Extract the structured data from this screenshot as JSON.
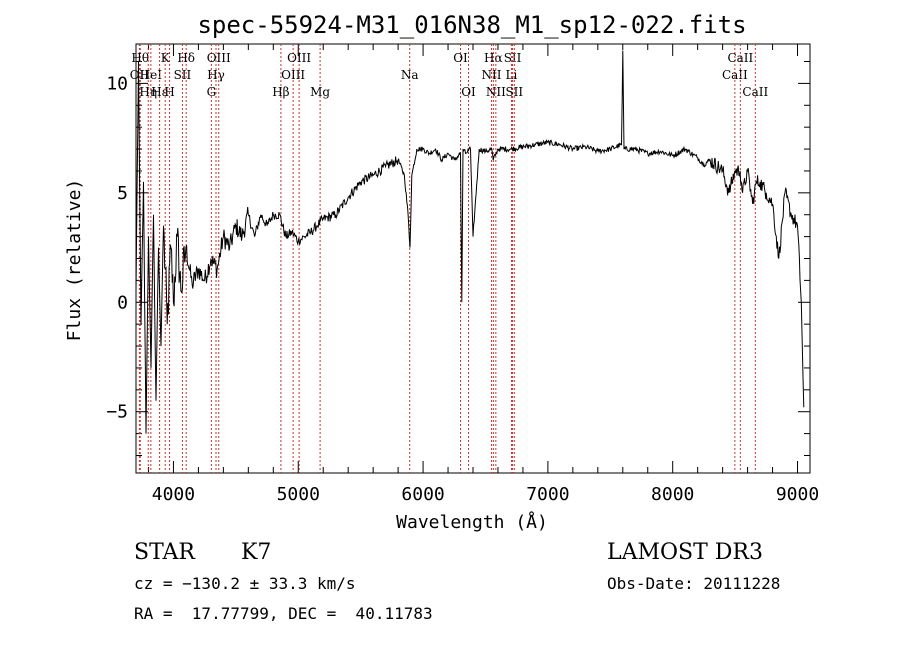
{
  "chart_data": {
    "type": "line",
    "title": "spec-55924-M31_016N38_M1_sp12-022.fits",
    "xlabel": "Wavelength (Å)",
    "ylabel": "Flux (relative)",
    "xlim": [
      3700,
      9100
    ],
    "ylim": [
      -7.8,
      11.8
    ],
    "xticks": [
      4000,
      5000,
      6000,
      7000,
      8000,
      9000
    ],
    "xtick_labels": [
      "4000",
      "5000",
      "6000",
      "7000",
      "8000",
      "9000"
    ],
    "yticks": [
      -5,
      0,
      5,
      10
    ],
    "ytick_labels": [
      "−5",
      "0",
      "5",
      "10"
    ],
    "grid": false,
    "series": [
      {
        "name": "flux",
        "x": [
          3700,
          3720,
          3740,
          3760,
          3780,
          3800,
          3820,
          3840,
          3860,
          3880,
          3900,
          3920,
          3950,
          3980,
          4000,
          4030,
          4060,
          4100,
          4150,
          4200,
          4250,
          4300,
          4350,
          4400,
          4450,
          4500,
          4550,
          4600,
          4650,
          4700,
          4750,
          4800,
          4850,
          4900,
          4950,
          5000,
          5050,
          5100,
          5150,
          5200,
          5300,
          5400,
          5500,
          5600,
          5700,
          5800,
          5850,
          5880,
          5895,
          5910,
          5950,
          6000,
          6050,
          6100,
          6150,
          6200,
          6250,
          6300,
          6310,
          6320,
          6340,
          6380,
          6400,
          6450,
          6500,
          6550,
          6562,
          6600,
          6700,
          6800,
          6900,
          7000,
          7100,
          7200,
          7300,
          7400,
          7500,
          7590,
          7600,
          7610,
          7700,
          7800,
          7900,
          8000,
          8100,
          8200,
          8250,
          8300,
          8400,
          8450,
          8500,
          8540,
          8560,
          8600,
          8640,
          8670,
          8700,
          8750,
          8800,
          8850,
          8900,
          8950,
          9000,
          9030,
          9050
        ],
        "y": [
          0.5,
          11.0,
          -1.0,
          5.5,
          -6.0,
          3.0,
          -3.0,
          4.0,
          -4.5,
          2.5,
          -2.0,
          3.5,
          -1.0,
          2.5,
          0.0,
          3.0,
          0.5,
          2.5,
          0.8,
          1.5,
          1.0,
          2.0,
          1.5,
          3.0,
          2.5,
          3.5,
          3.0,
          4.0,
          3.0,
          4.0,
          3.5,
          4.0,
          4.0,
          3.0,
          3.2,
          2.8,
          3.0,
          3.2,
          3.5,
          3.8,
          4.0,
          4.8,
          5.5,
          5.8,
          6.2,
          6.5,
          5.8,
          4.0,
          2.5,
          5.8,
          7.0,
          7.0,
          6.8,
          7.0,
          6.5,
          6.8,
          6.5,
          6.8,
          0.0,
          7.0,
          6.8,
          7.0,
          3.0,
          7.0,
          6.9,
          7.0,
          6.5,
          7.0,
          7.0,
          7.1,
          7.2,
          7.3,
          7.2,
          7.0,
          7.1,
          6.9,
          7.0,
          7.2,
          11.5,
          7.0,
          7.0,
          6.8,
          6.9,
          6.7,
          7.0,
          6.6,
          6.3,
          6.5,
          6.0,
          5.0,
          6.0,
          6.0,
          5.0,
          6.0,
          4.5,
          5.5,
          5.5,
          5.0,
          4.5,
          2.0,
          5.0,
          4.0,
          3.5,
          0.0,
          -4.8
        ]
      }
    ],
    "lines": [
      {
        "wl": 3727,
        "label": "OII",
        "row": 1
      },
      {
        "wl": 3734,
        "label": "Hθ",
        "row": 0
      },
      {
        "wl": 3798,
        "label": "Hη",
        "row": 2
      },
      {
        "wl": 3819,
        "label": "HeI",
        "row": 1
      },
      {
        "wl": 3889,
        "label": "Hε",
        "row": 2
      },
      {
        "wl": 3934,
        "label": "K",
        "row": 0
      },
      {
        "wl": 3969,
        "label": "H",
        "row": 2
      },
      {
        "wl": 4072,
        "label": "SII",
        "row": 1
      },
      {
        "wl": 4102,
        "label": "Hδ",
        "row": 0
      },
      {
        "wl": 4304,
        "label": "G",
        "row": 2
      },
      {
        "wl": 4341,
        "label": "Hγ",
        "row": 1
      },
      {
        "wl": 4363,
        "label": "OIII",
        "row": 0
      },
      {
        "wl": 4861,
        "label": "Hβ",
        "row": 2
      },
      {
        "wl": 4959,
        "label": "OIII",
        "row": 1
      },
      {
        "wl": 5007,
        "label": "OIII",
        "row": 0
      },
      {
        "wl": 5175,
        "label": "Mg",
        "row": 2
      },
      {
        "wl": 5893,
        "label": "Na",
        "row": 1
      },
      {
        "wl": 6300,
        "label": "OI",
        "row": 0
      },
      {
        "wl": 6364,
        "label": "OI",
        "row": 2
      },
      {
        "wl": 6548,
        "label": "NII",
        "row": 1
      },
      {
        "wl": 6563,
        "label": "Hα",
        "row": 0
      },
      {
        "wl": 6583,
        "label": "NII",
        "row": 2
      },
      {
        "wl": 6708,
        "label": "Li",
        "row": 1
      },
      {
        "wl": 6717,
        "label": "SII",
        "row": 0
      },
      {
        "wl": 6731,
        "label": "SII",
        "row": 2
      },
      {
        "wl": 8498,
        "label": "CaII",
        "row": 1
      },
      {
        "wl": 8542,
        "label": "CaII",
        "row": 0
      },
      {
        "wl": 8662,
        "label": "CaII",
        "row": 2
      }
    ]
  },
  "info": {
    "object_class": "STAR",
    "subclass": "K7",
    "survey": "LAMOST DR3",
    "cz": "cz = −130.2 ± 33.3 km/s",
    "obs_date": "Obs-Date: 20111228",
    "coords": "RA =  17.77799, DEC =  40.11783"
  }
}
